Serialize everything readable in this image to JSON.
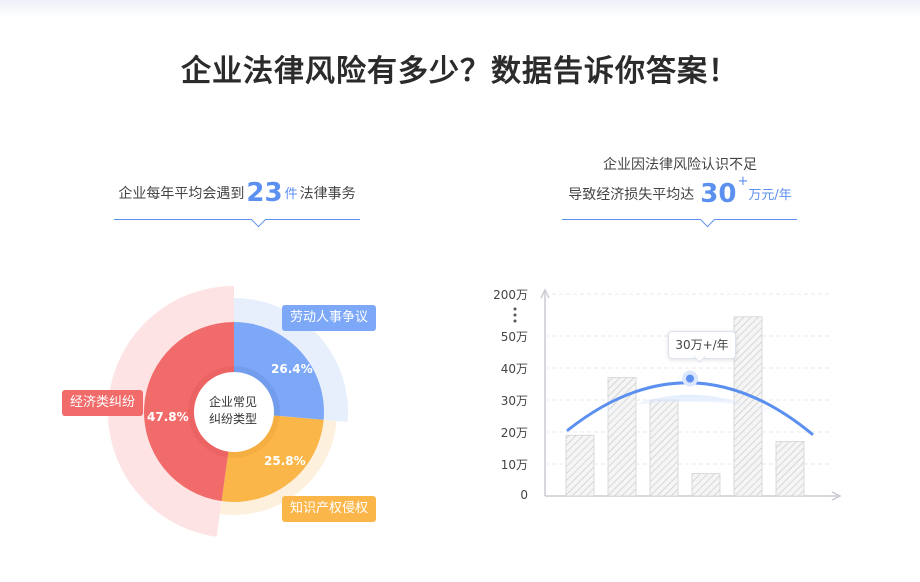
{
  "header": {
    "title": "企业法律风险有多少？数据告诉你答案！"
  },
  "stat_left": {
    "prefix": "企业每年平均会遇到",
    "value": "23",
    "unit": "件",
    "suffix": "法律事务"
  },
  "stat_right": {
    "line1": "企业因法律风险认识不足",
    "line2_prefix": "导致经济损失平均达",
    "value": "30",
    "plus": "+",
    "unit": "万元/年"
  },
  "colors": {
    "blue": "#7da8f7",
    "red": "#f26b6b",
    "orange": "#fbb64a",
    "accent": "#5b8ff0"
  },
  "chart_data": [
    {
      "type": "pie",
      "title": "",
      "center_label": [
        "企业常见",
        "纠纷类型"
      ],
      "slices": [
        {
          "name": "劳动人事争议",
          "value": 26.4,
          "label": "26.4%",
          "color": "#7da8f7"
        },
        {
          "name": "知识产权侵权",
          "value": 25.8,
          "label": "25.8%",
          "color": "#fbb64a"
        },
        {
          "name": "经济类纠纷",
          "value": 47.8,
          "label": "47.8%",
          "color": "#f26b6b"
        }
      ]
    },
    {
      "type": "bar",
      "title": "",
      "xlabel": "",
      "ylabel": "",
      "y_tick_labels": [
        "0",
        "10万",
        "20万",
        "30万",
        "40万",
        "50万",
        "200万"
      ],
      "axis_break": true,
      "values": [
        19,
        37,
        30,
        7,
        56,
        17
      ],
      "trend_line": "arc",
      "trend_peak_value": 37,
      "annotation": "30万+/年",
      "grid": true
    }
  ]
}
